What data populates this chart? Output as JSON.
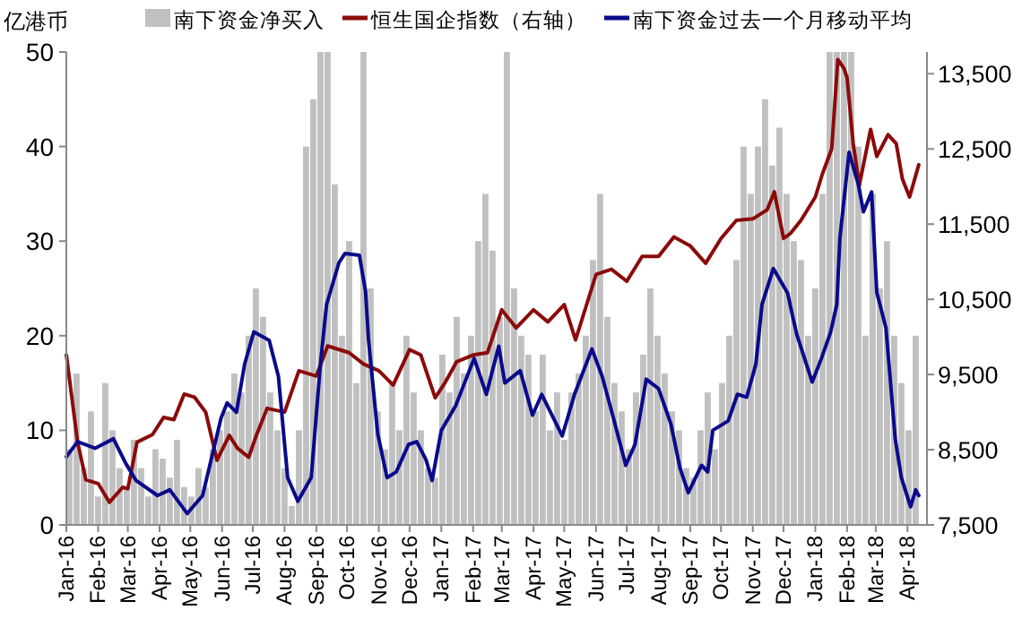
{
  "chart_data": {
    "type": "bar",
    "ylabel": "亿港币",
    "legend": "top",
    "xlim": [
      "2016-01-01",
      "2018-04-20"
    ],
    "xticks": [
      {
        "value": "2016-01-01",
        "label": "Jan-16"
      },
      {
        "value": "2016-02-01",
        "label": "Feb-16"
      },
      {
        "value": "2016-03-01",
        "label": "Mar-16"
      },
      {
        "value": "2016-04-01",
        "label": "Apr-16"
      },
      {
        "value": "2016-05-01",
        "label": "May-16"
      },
      {
        "value": "2016-06-01",
        "label": "Jun-16"
      },
      {
        "value": "2016-07-01",
        "label": "Jul-16"
      },
      {
        "value": "2016-08-01",
        "label": "Aug-16"
      },
      {
        "value": "2016-09-01",
        "label": "Sep-16"
      },
      {
        "value": "2016-10-01",
        "label": "Oct-16"
      },
      {
        "value": "2016-11-01",
        "label": "Nov-16"
      },
      {
        "value": "2016-12-01",
        "label": "Dec-16"
      },
      {
        "value": "2017-01-01",
        "label": "Jan-17"
      },
      {
        "value": "2017-02-01",
        "label": "Feb-17"
      },
      {
        "value": "2017-03-01",
        "label": "Mar-17"
      },
      {
        "value": "2017-04-01",
        "label": "Apr-17"
      },
      {
        "value": "2017-05-01",
        "label": "May-17"
      },
      {
        "value": "2017-06-01",
        "label": "Jun-17"
      },
      {
        "value": "2017-07-01",
        "label": "Jul-17"
      },
      {
        "value": "2017-08-01",
        "label": "Aug-17"
      },
      {
        "value": "2017-09-01",
        "label": "Sep-17"
      },
      {
        "value": "2017-10-01",
        "label": "Oct-17"
      },
      {
        "value": "2017-11-01",
        "label": "Nov-17"
      },
      {
        "value": "2017-12-01",
        "label": "Dec-17"
      },
      {
        "value": "2018-01-01",
        "label": "Jan-18"
      },
      {
        "value": "2018-02-01",
        "label": "Feb-18"
      },
      {
        "value": "2018-03-01",
        "label": "Mar-18"
      },
      {
        "value": "2018-04-01",
        "label": "Apr-18"
      }
    ],
    "ylim": [
      0,
      50
    ],
    "yticks": [
      0,
      10,
      20,
      30,
      40,
      50
    ],
    "y2lim": [
      7500,
      13790
    ],
    "y2ticks": [
      {
        "value": 7500,
        "label": "7,500"
      },
      {
        "value": 8500,
        "label": "8,500"
      },
      {
        "value": 9500,
        "label": "9,500"
      },
      {
        "value": 10500,
        "label": "10,500"
      },
      {
        "value": 11500,
        "label": "11,500"
      },
      {
        "value": 12500,
        "label": "12,500"
      },
      {
        "value": 13500,
        "label": "13,500"
      }
    ],
    "series": [
      {
        "name": "南下资金净买入",
        "color": "#c0c0c0",
        "x": [
          "2016-01-04",
          "2016-01-11",
          "2016-01-18",
          "2016-01-25",
          "2016-02-01",
          "2016-02-08",
          "2016-02-15",
          "2016-02-22",
          "2016-02-29",
          "2016-03-07",
          "2016-03-14",
          "2016-03-21",
          "2016-03-28",
          "2016-04-04",
          "2016-04-11",
          "2016-04-18",
          "2016-04-25",
          "2016-05-02",
          "2016-05-09",
          "2016-05-16",
          "2016-05-23",
          "2016-05-30",
          "2016-06-06",
          "2016-06-13",
          "2016-06-20",
          "2016-06-27",
          "2016-07-04",
          "2016-07-11",
          "2016-07-18",
          "2016-07-25",
          "2016-08-01",
          "2016-08-08",
          "2016-08-15",
          "2016-08-22",
          "2016-08-29",
          "2016-09-05",
          "2016-09-12",
          "2016-09-19",
          "2016-09-26",
          "2016-10-03",
          "2016-10-10",
          "2016-10-17",
          "2016-10-24",
          "2016-10-31",
          "2016-11-07",
          "2016-11-14",
          "2016-11-21",
          "2016-11-28",
          "2016-12-05",
          "2016-12-12",
          "2016-12-19",
          "2016-12-26",
          "2017-01-02",
          "2017-01-09",
          "2017-01-16",
          "2017-01-23",
          "2017-01-30",
          "2017-02-06",
          "2017-02-13",
          "2017-02-20",
          "2017-02-27",
          "2017-03-06",
          "2017-03-13",
          "2017-03-20",
          "2017-03-27",
          "2017-04-03",
          "2017-04-10",
          "2017-04-17",
          "2017-04-24",
          "2017-05-01",
          "2017-05-08",
          "2017-05-15",
          "2017-05-22",
          "2017-05-29",
          "2017-06-05",
          "2017-06-12",
          "2017-06-19",
          "2017-06-26",
          "2017-07-03",
          "2017-07-10",
          "2017-07-17",
          "2017-07-24",
          "2017-07-31",
          "2017-08-07",
          "2017-08-14",
          "2017-08-21",
          "2017-08-28",
          "2017-09-04",
          "2017-09-11",
          "2017-09-18",
          "2017-09-25",
          "2017-10-02",
          "2017-10-09",
          "2017-10-16",
          "2017-10-23",
          "2017-10-30",
          "2017-11-06",
          "2017-11-13",
          "2017-11-20",
          "2017-11-27",
          "2017-12-04",
          "2017-12-11",
          "2017-12-18",
          "2017-12-25",
          "2018-01-01",
          "2018-01-08",
          "2018-01-15",
          "2018-01-22",
          "2018-01-29",
          "2018-02-05",
          "2018-02-12",
          "2018-02-19",
          "2018-02-26",
          "2018-03-05",
          "2018-03-12",
          "2018-03-19",
          "2018-03-26",
          "2018-04-02",
          "2018-04-09"
        ],
        "values": [
          8,
          16,
          6,
          12,
          3,
          15,
          10,
          6,
          4,
          9,
          6,
          3,
          8,
          7,
          5,
          9,
          4,
          3,
          6,
          4,
          8,
          10,
          12,
          16,
          14,
          20,
          25,
          22,
          14,
          10,
          6,
          2,
          10,
          40,
          45,
          50,
          50,
          36,
          20,
          30,
          15,
          50,
          25,
          12,
          8,
          15,
          10,
          20,
          14,
          10,
          6,
          5,
          18,
          14,
          22,
          16,
          20,
          30,
          35,
          29,
          22,
          50,
          25,
          20,
          18,
          12,
          18,
          10,
          14,
          9,
          14,
          16,
          20,
          28,
          35,
          22,
          15,
          12,
          8,
          14,
          18,
          25,
          20,
          16,
          12,
          10,
          6,
          5,
          10,
          14,
          8,
          15,
          20,
          28,
          40,
          35,
          40,
          45,
          38,
          42,
          35,
          30,
          28,
          20,
          25,
          35,
          50,
          50,
          50,
          50,
          40,
          20,
          35,
          25,
          30,
          20,
          15,
          10,
          20
        ]
      },
      {
        "name": "恒生国企指数（右轴）",
        "type": "line",
        "axis": "y2",
        "color": "#8b0a0a",
        "x": [
          "2016-01-01",
          "2016-01-12",
          "2016-01-20",
          "2016-02-01",
          "2016-02-12",
          "2016-02-25",
          "2016-03-01",
          "2016-03-10",
          "2016-03-25",
          "2016-04-05",
          "2016-04-15",
          "2016-04-25",
          "2016-05-05",
          "2016-05-16",
          "2016-05-27",
          "2016-06-08",
          "2016-06-16",
          "2016-06-27",
          "2016-07-05",
          "2016-07-15",
          "2016-08-01",
          "2016-08-15",
          "2016-09-01",
          "2016-09-12",
          "2016-10-03",
          "2016-10-17",
          "2016-11-01",
          "2016-11-15",
          "2016-12-01",
          "2016-12-12",
          "2016-12-26",
          "2017-01-05",
          "2017-01-16",
          "2017-02-01",
          "2017-02-15",
          "2017-03-01",
          "2017-03-15",
          "2017-04-01",
          "2017-04-15",
          "2017-05-01",
          "2017-05-12",
          "2017-06-01",
          "2017-06-16",
          "2017-07-01",
          "2017-07-16",
          "2017-08-01",
          "2017-08-16",
          "2017-09-01",
          "2017-09-16",
          "2017-10-01",
          "2017-10-16",
          "2017-11-01",
          "2017-11-15",
          "2017-11-22",
          "2017-12-01",
          "2017-12-08",
          "2017-12-18",
          "2018-01-01",
          "2018-01-08",
          "2018-01-17",
          "2018-01-23",
          "2018-01-29",
          "2018-02-01",
          "2018-02-07",
          "2018-02-13",
          "2018-02-24",
          "2018-03-02",
          "2018-03-13",
          "2018-03-21",
          "2018-03-27",
          "2018-04-03",
          "2018-04-12"
        ],
        "values": [
          9760,
          8600,
          8100,
          8050,
          7800,
          8000,
          7980,
          8600,
          8700,
          8930,
          8900,
          9240,
          9200,
          9000,
          8360,
          8690,
          8520,
          8400,
          8710,
          9050,
          9000,
          9550,
          9480,
          9880,
          9790,
          9640,
          9550,
          9360,
          9830,
          9760,
          9190,
          9400,
          9670,
          9760,
          9790,
          10360,
          10120,
          10360,
          10200,
          10430,
          9960,
          10830,
          10900,
          10740,
          11070,
          11070,
          11330,
          11210,
          10980,
          11310,
          11550,
          11570,
          11690,
          11930,
          11310,
          11380,
          11550,
          11860,
          12170,
          12500,
          13690,
          13570,
          13450,
          12570,
          12020,
          12760,
          12400,
          12690,
          12570,
          12100,
          11860,
          12290
        ]
      },
      {
        "name": "南下资金过去一个月移动平均",
        "type": "line",
        "color": "#0a0a8c",
        "x": [
          "2016-01-01",
          "2016-01-12",
          "2016-01-29",
          "2016-02-16",
          "2016-02-28",
          "2016-03-09",
          "2016-03-30",
          "2016-04-11",
          "2016-04-28",
          "2016-05-13",
          "2016-05-31",
          "2016-06-06",
          "2016-06-15",
          "2016-06-23",
          "2016-07-02",
          "2016-07-17",
          "2016-07-26",
          "2016-08-04",
          "2016-08-14",
          "2016-08-27",
          "2016-09-05",
          "2016-09-11",
          "2016-09-23",
          "2016-09-29",
          "2016-10-13",
          "2016-10-19",
          "2016-10-22",
          "2016-10-31",
          "2016-11-09",
          "2016-11-18",
          "2016-11-30",
          "2016-12-08",
          "2016-12-17",
          "2016-12-23",
          "2017-01-01",
          "2017-01-15",
          "2017-02-02",
          "2017-02-14",
          "2017-02-26",
          "2017-03-04",
          "2017-03-19",
          "2017-03-31",
          "2017-04-09",
          "2017-04-29",
          "2017-05-11",
          "2017-05-28",
          "2017-06-07",
          "2017-06-18",
          "2017-06-30",
          "2017-07-09",
          "2017-07-20",
          "2017-08-01",
          "2017-08-13",
          "2017-08-22",
          "2017-08-30",
          "2017-09-12",
          "2017-09-18",
          "2017-09-23",
          "2017-10-08",
          "2017-10-17",
          "2017-10-26",
          "2017-11-04",
          "2017-11-10",
          "2017-11-21",
          "2017-11-28",
          "2017-12-05",
          "2017-12-10",
          "2017-12-14",
          "2017-12-29",
          "2018-01-07",
          "2018-01-16",
          "2018-01-22",
          "2018-01-25",
          "2018-02-03",
          "2018-02-12",
          "2018-02-17",
          "2018-02-25",
          "2018-03-02",
          "2018-03-11",
          "2018-03-20",
          "2018-03-26",
          "2018-04-04",
          "2018-04-09",
          "2018-04-12"
        ],
        "values": [
          7.2,
          8.8,
          8.1,
          9.1,
          6.5,
          4.7,
          3.1,
          3.7,
          1.2,
          3.1,
          11.3,
          12.9,
          11.9,
          17.0,
          20.4,
          19.5,
          15.7,
          5.0,
          2.5,
          5.0,
          17.0,
          23.3,
          27.7,
          28.7,
          28.5,
          24.7,
          19.5,
          9.6,
          5.0,
          5.6,
          8.5,
          8.8,
          6.9,
          4.7,
          10.0,
          12.6,
          17.6,
          13.8,
          18.9,
          15.0,
          16.3,
          11.6,
          13.8,
          9.4,
          13.8,
          18.6,
          15.7,
          11.3,
          6.3,
          8.5,
          15.4,
          14.4,
          10.7,
          6.0,
          3.4,
          6.3,
          5.6,
          10.0,
          11.0,
          13.8,
          13.5,
          17.0,
          23.3,
          27.1,
          25.8,
          24.5,
          22.0,
          20.1,
          15.1,
          17.6,
          20.4,
          23.3,
          30.3,
          39.4,
          36.0,
          33.1,
          35.2,
          24.6,
          20.8,
          9.1,
          5.0,
          1.9,
          3.7,
          3.1
        ]
      }
    ]
  }
}
